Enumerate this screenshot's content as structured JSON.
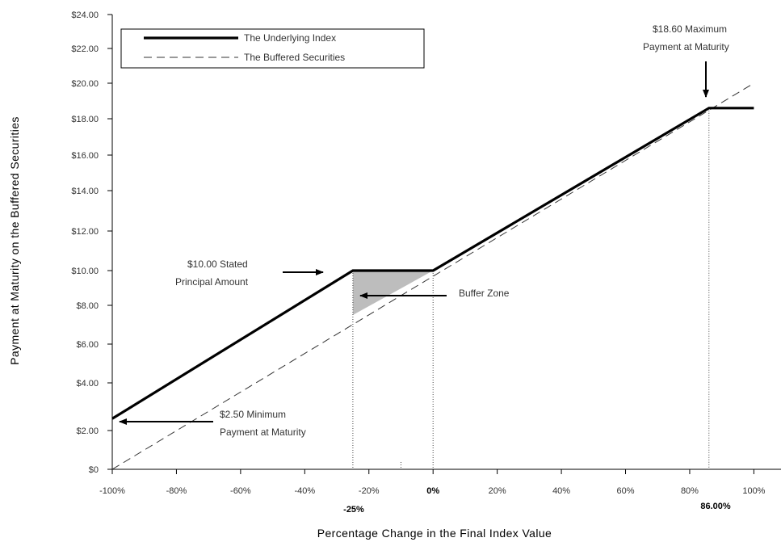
{
  "chart_data": {
    "type": "line",
    "xlabel": "Percentage Change in the Final Index Value",
    "ylabel": "Payment at Maturity on the Buffered Securities",
    "x_ticks": [
      "-100%",
      "-80%",
      "-60%",
      "-40%",
      "-20%",
      "0%",
      "20%",
      "40%",
      "60%",
      "80%",
      "100%"
    ],
    "x_tick_values": [
      -100,
      -80,
      -60,
      -40,
      -20,
      0,
      20,
      40,
      60,
      80,
      100
    ],
    "y_ticks": [
      "$0",
      "$2.00",
      "$4.00",
      "$6.00",
      "$8.00",
      "$10.00",
      "$12.00",
      "$14.00",
      "$16.00",
      "$18.00",
      "$20.00",
      "$22.00",
      "$24.00"
    ],
    "y_tick_values": [
      0,
      2,
      4,
      6,
      8,
      10,
      12,
      14,
      16,
      18,
      20,
      22,
      24
    ],
    "xlim": [
      -100,
      100
    ],
    "ylim": [
      0,
      24
    ],
    "grid": false,
    "legend_placement": "top-left",
    "series": [
      {
        "name": "The Underlying Index",
        "style": "solid-thick",
        "color": "#000000",
        "points": [
          [
            -100,
            2.5
          ],
          [
            -25,
            10
          ],
          [
            0,
            10
          ],
          [
            86,
            18.6
          ],
          [
            100,
            18.6
          ]
        ]
      },
      {
        "name": "The Buffered Securities",
        "style": "dashed",
        "color": "#000000",
        "points": [
          [
            -100,
            0
          ],
          [
            100,
            20
          ]
        ]
      }
    ],
    "buffer_zone": {
      "label": "Buffer  Zone",
      "color": "#bdbdbd",
      "polygon": [
        [
          -25,
          10
        ],
        [
          0,
          10
        ],
        [
          -25,
          7.5
        ]
      ]
    },
    "reference_lines": [
      {
        "x": -25,
        "label": "-25%"
      },
      {
        "x": 0,
        "label": "0%"
      },
      {
        "x": 86,
        "label": "86.00%"
      }
    ],
    "annotations": {
      "maximum": {
        "line1": "$18.60 Maximum",
        "line2": "Payment at Maturity",
        "x": 86,
        "y": 18.6
      },
      "stated": {
        "line1": "$10.00 Stated",
        "line2": "Principal Amount",
        "x": -25,
        "y": 10
      },
      "minimum": {
        "line1": "$2.50 Minimum",
        "line2": "Payment at Maturity",
        "x": -100,
        "y": 2.5
      }
    }
  }
}
